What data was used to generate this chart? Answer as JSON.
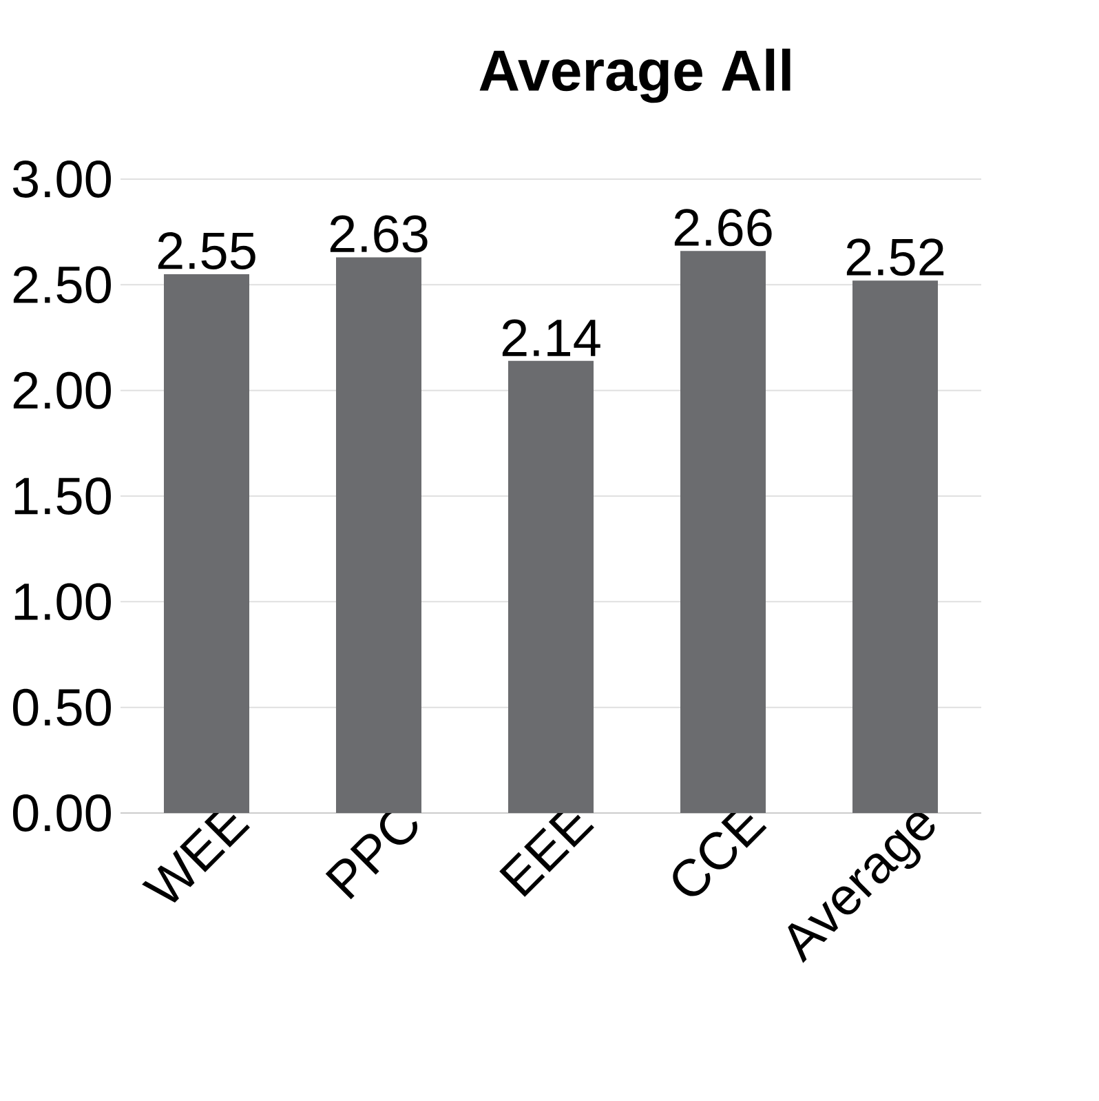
{
  "chart_data": {
    "type": "bar",
    "title": "Average All",
    "categories": [
      "WEE",
      "PPC",
      "EEE",
      "CCE",
      "Average"
    ],
    "values": [
      2.55,
      2.63,
      2.14,
      2.66,
      2.52
    ],
    "color": "#6b6c6f",
    "ylim": [
      0,
      3
    ],
    "yticks": [
      {
        "value": 0,
        "label": "0.00"
      },
      {
        "value": 0.5,
        "label": "0.50"
      },
      {
        "value": 1,
        "label": "1.00"
      },
      {
        "value": 1.5,
        "label": "1.50"
      },
      {
        "value": 2,
        "label": "2.00"
      },
      {
        "value": 2.5,
        "label": "2.50"
      },
      {
        "value": 3,
        "label": "3.00"
      }
    ],
    "grid": "y",
    "data_labels": true
  }
}
